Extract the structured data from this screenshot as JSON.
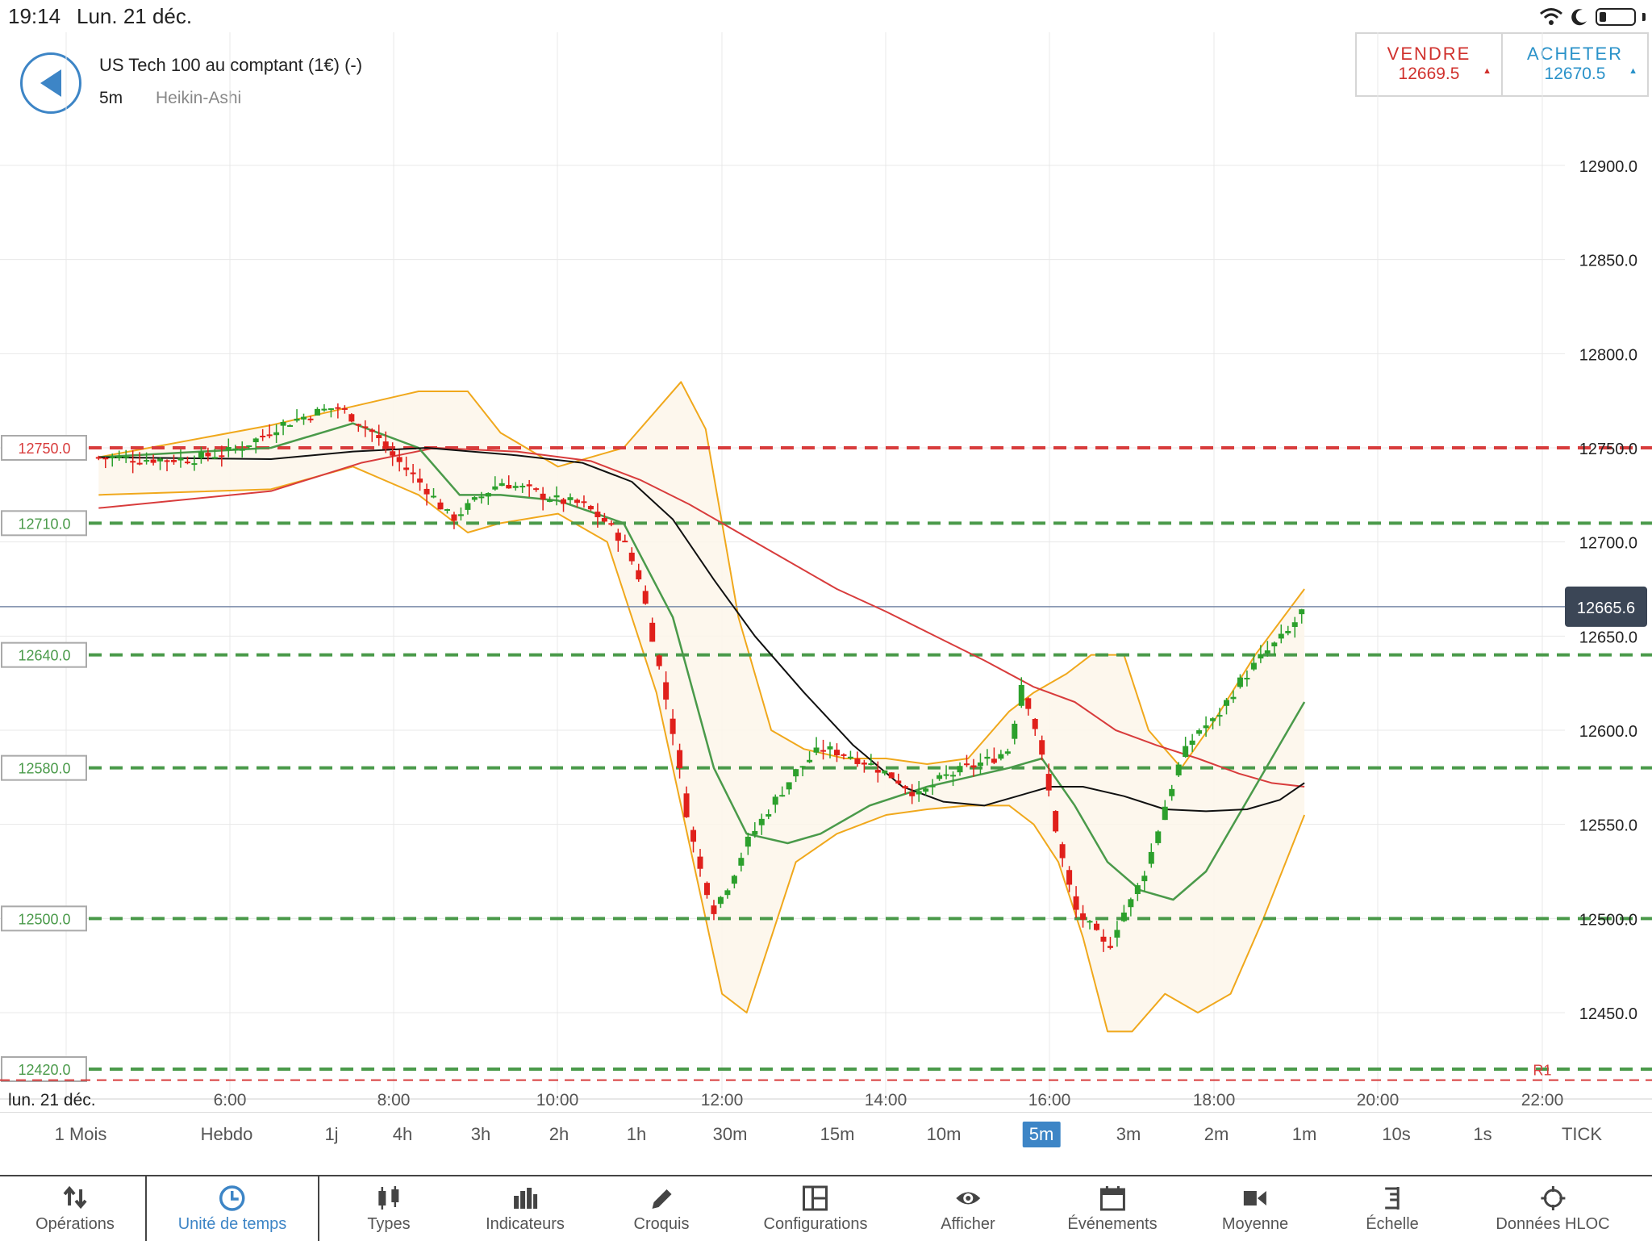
{
  "status": {
    "time": "19:14",
    "date": "Lun. 21 déc."
  },
  "header": {
    "instrument": "US Tech 100 au comptant (1€) (-)",
    "timeframe": "5m",
    "chart_type": "Heikin-Ashi"
  },
  "trade": {
    "sell_label": "VENDRE",
    "sell_price": "12669.5",
    "buy_label": "ACHETER",
    "buy_price": "12670.5"
  },
  "timeframes": [
    "1 Mois",
    "Hebdo",
    "1j",
    "4h",
    "3h",
    "2h",
    "1h",
    "30m",
    "15m",
    "10m",
    "5m",
    "3m",
    "2m",
    "1m",
    "10s",
    "1s",
    "TICK"
  ],
  "active_timeframe": "5m",
  "toolbar": [
    {
      "label": "Opérations",
      "icon": "arrows-updown-icon"
    },
    {
      "label": "Unité de temps",
      "icon": "clock-icon"
    },
    {
      "label": "Types",
      "icon": "candles-icon"
    },
    {
      "label": "Indicateurs",
      "icon": "bars-icon"
    },
    {
      "label": "Croquis",
      "icon": "pencil-icon"
    },
    {
      "label": "Configurations",
      "icon": "layout-icon"
    },
    {
      "label": "Afficher",
      "icon": "eye-icon"
    },
    {
      "label": "Événements",
      "icon": "calendar-icon"
    },
    {
      "label": "Moyenne",
      "icon": "camera-icon"
    },
    {
      "label": "Échelle",
      "icon": "scale-icon"
    },
    {
      "label": "Données HLOC",
      "icon": "crosshair-icon"
    }
  ],
  "active_tool": "Unité de temps",
  "colors": {
    "up": "#2ca02c",
    "down": "#e0201b",
    "accent": "#3d85c6",
    "bollinger": "#f0a81c",
    "ma_fast": "#4a9a4a",
    "ma_mid": "#d83c3c",
    "ma_slow": "#111111"
  },
  "chart_data": {
    "type": "candlestick",
    "style": "Heikin-Ashi",
    "date_label": "lun. 21 déc.",
    "x_ticks": [
      "6:00",
      "8:00",
      "10:00",
      "12:00",
      "14:00",
      "16:00",
      "18:00",
      "20:00",
      "22:00"
    ],
    "x_range_hours": [
      4.4,
      22.6
    ],
    "y_ticks": [
      "12900.0",
      "12850.0",
      "12800.0",
      "12750.0",
      "12700.0",
      "12650.0",
      "12600.0",
      "12550.0",
      "12500.0",
      "12450.0"
    ],
    "y_range": [
      12415,
      12945
    ],
    "current_price": "12665.6",
    "levels": [
      {
        "value": 12750,
        "label": "12750.0",
        "color": "red"
      },
      {
        "value": 12710,
        "label": "12710.0",
        "color": "green"
      },
      {
        "value": 12640,
        "label": "12640.0",
        "color": "green"
      },
      {
        "value": 12580,
        "label": "12580.0",
        "color": "green"
      },
      {
        "value": 12500,
        "label": "12500.0",
        "color": "green"
      },
      {
        "value": 12420,
        "label": "12420.0",
        "color": "green"
      }
    ],
    "r1_label": "R1",
    "r1_value": 12415,
    "price_path": [
      [
        4.4,
        12745
      ],
      [
        5.0,
        12744
      ],
      [
        5.5,
        12744
      ],
      [
        6.0,
        12748
      ],
      [
        6.3,
        12754
      ],
      [
        6.6,
        12762
      ],
      [
        7.0,
        12768
      ],
      [
        7.3,
        12772
      ],
      [
        7.7,
        12760
      ],
      [
        8.0,
        12745
      ],
      [
        8.4,
        12728
      ],
      [
        8.7,
        12712
      ],
      [
        9.0,
        12722
      ],
      [
        9.3,
        12732
      ],
      [
        9.6,
        12728
      ],
      [
        10.0,
        12722
      ],
      [
        10.3,
        12720
      ],
      [
        10.6,
        12710
      ],
      [
        10.8,
        12700
      ],
      [
        11.0,
        12680
      ],
      [
        11.2,
        12640
      ],
      [
        11.4,
        12600
      ],
      [
        11.55,
        12560
      ],
      [
        11.7,
        12530
      ],
      [
        11.9,
        12505
      ],
      [
        12.1,
        12520
      ],
      [
        12.3,
        12540
      ],
      [
        12.6,
        12560
      ],
      [
        12.9,
        12578
      ],
      [
        13.2,
        12590
      ],
      [
        13.5,
        12588
      ],
      [
        13.8,
        12582
      ],
      [
        14.1,
        12575
      ],
      [
        14.4,
        12565
      ],
      [
        14.7,
        12575
      ],
      [
        15.0,
        12580
      ],
      [
        15.3,
        12585
      ],
      [
        15.5,
        12590
      ],
      [
        15.65,
        12625
      ],
      [
        15.8,
        12605
      ],
      [
        15.95,
        12575
      ],
      [
        16.1,
        12540
      ],
      [
        16.3,
        12505
      ],
      [
        16.5,
        12495
      ],
      [
        16.7,
        12483
      ],
      [
        16.85,
        12500
      ],
      [
        17.0,
        12510
      ],
      [
        17.2,
        12530
      ],
      [
        17.4,
        12560
      ],
      [
        17.6,
        12585
      ],
      [
        17.8,
        12600
      ],
      [
        18.0,
        12605
      ],
      [
        18.3,
        12625
      ],
      [
        18.6,
        12640
      ],
      [
        18.9,
        12652
      ],
      [
        19.1,
        12665
      ]
    ],
    "bollinger_upper": [
      [
        4.4,
        12745
      ],
      [
        6.5,
        12762
      ],
      [
        7.5,
        12772
      ],
      [
        8.3,
        12780
      ],
      [
        8.9,
        12780
      ],
      [
        9.3,
        12758
      ],
      [
        10.0,
        12740
      ],
      [
        10.8,
        12750
      ],
      [
        11.2,
        12770
      ],
      [
        11.5,
        12785
      ],
      [
        11.8,
        12760
      ],
      [
        12.2,
        12660
      ],
      [
        12.6,
        12600
      ],
      [
        13.0,
        12590
      ],
      [
        13.5,
        12585
      ],
      [
        14.0,
        12585
      ],
      [
        14.5,
        12582
      ],
      [
        15.0,
        12585
      ],
      [
        15.5,
        12610
      ],
      [
        15.8,
        12620
      ],
      [
        16.2,
        12630
      ],
      [
        16.5,
        12640
      ],
      [
        16.9,
        12640
      ],
      [
        17.2,
        12600
      ],
      [
        17.6,
        12580
      ],
      [
        18.0,
        12605
      ],
      [
        18.5,
        12640
      ],
      [
        19.1,
        12675
      ]
    ],
    "bollinger_lower": [
      [
        4.4,
        12725
      ],
      [
        6.5,
        12728
      ],
      [
        7.5,
        12740
      ],
      [
        8.3,
        12725
      ],
      [
        8.9,
        12705
      ],
      [
        9.3,
        12710
      ],
      [
        10.0,
        12715
      ],
      [
        10.6,
        12700
      ],
      [
        11.2,
        12620
      ],
      [
        11.6,
        12540
      ],
      [
        12.0,
        12460
      ],
      [
        12.3,
        12450
      ],
      [
        12.6,
        12490
      ],
      [
        12.9,
        12530
      ],
      [
        13.4,
        12545
      ],
      [
        14.0,
        12555
      ],
      [
        14.5,
        12558
      ],
      [
        15.0,
        12560
      ],
      [
        15.5,
        12560
      ],
      [
        15.8,
        12550
      ],
      [
        16.1,
        12530
      ],
      [
        16.4,
        12490
      ],
      [
        16.7,
        12440
      ],
      [
        17.0,
        12440
      ],
      [
        17.4,
        12460
      ],
      [
        17.8,
        12450
      ],
      [
        18.2,
        12460
      ],
      [
        18.6,
        12500
      ],
      [
        19.1,
        12555
      ]
    ],
    "ma_fast": [
      [
        4.4,
        12745
      ],
      [
        6.5,
        12750
      ],
      [
        7.5,
        12763
      ],
      [
        8.3,
        12750
      ],
      [
        8.8,
        12725
      ],
      [
        9.3,
        12725
      ],
      [
        10.0,
        12722
      ],
      [
        10.8,
        12710
      ],
      [
        11.4,
        12660
      ],
      [
        11.9,
        12580
      ],
      [
        12.3,
        12545
      ],
      [
        12.8,
        12540
      ],
      [
        13.2,
        12545
      ],
      [
        13.8,
        12560
      ],
      [
        14.5,
        12570
      ],
      [
        15.0,
        12575
      ],
      [
        15.5,
        12580
      ],
      [
        15.9,
        12585
      ],
      [
        16.3,
        12560
      ],
      [
        16.7,
        12530
      ],
      [
        17.1,
        12515
      ],
      [
        17.5,
        12510
      ],
      [
        17.9,
        12525
      ],
      [
        18.3,
        12555
      ],
      [
        18.7,
        12585
      ],
      [
        19.1,
        12615
      ]
    ],
    "ma_mid": [
      [
        4.4,
        12718
      ],
      [
        6.5,
        12727
      ],
      [
        7.6,
        12742
      ],
      [
        8.5,
        12750
      ],
      [
        9.5,
        12748
      ],
      [
        10.4,
        12743
      ],
      [
        11.0,
        12733
      ],
      [
        11.6,
        12720
      ],
      [
        12.2,
        12705
      ],
      [
        12.8,
        12690
      ],
      [
        13.4,
        12675
      ],
      [
        14.0,
        12663
      ],
      [
        14.6,
        12650
      ],
      [
        15.2,
        12637
      ],
      [
        15.8,
        12623
      ],
      [
        16.3,
        12615
      ],
      [
        16.8,
        12600
      ],
      [
        17.3,
        12592
      ],
      [
        17.8,
        12585
      ],
      [
        18.3,
        12577
      ],
      [
        18.7,
        12572
      ],
      [
        19.1,
        12570
      ]
    ],
    "ma_slow": [
      [
        4.4,
        12745
      ],
      [
        6.5,
        12744
      ],
      [
        7.5,
        12748
      ],
      [
        8.4,
        12750
      ],
      [
        9.5,
        12746
      ],
      [
        10.3,
        12742
      ],
      [
        10.9,
        12732
      ],
      [
        11.4,
        12712
      ],
      [
        11.9,
        12680
      ],
      [
        12.4,
        12650
      ],
      [
        13.0,
        12620
      ],
      [
        13.6,
        12592
      ],
      [
        14.2,
        12570
      ],
      [
        14.7,
        12562
      ],
      [
        15.2,
        12560
      ],
      [
        15.6,
        12565
      ],
      [
        16.0,
        12570
      ],
      [
        16.4,
        12570
      ],
      [
        16.9,
        12565
      ],
      [
        17.4,
        12558
      ],
      [
        17.9,
        12557
      ],
      [
        18.4,
        12558
      ],
      [
        18.8,
        12563
      ],
      [
        19.1,
        12572
      ]
    ]
  }
}
